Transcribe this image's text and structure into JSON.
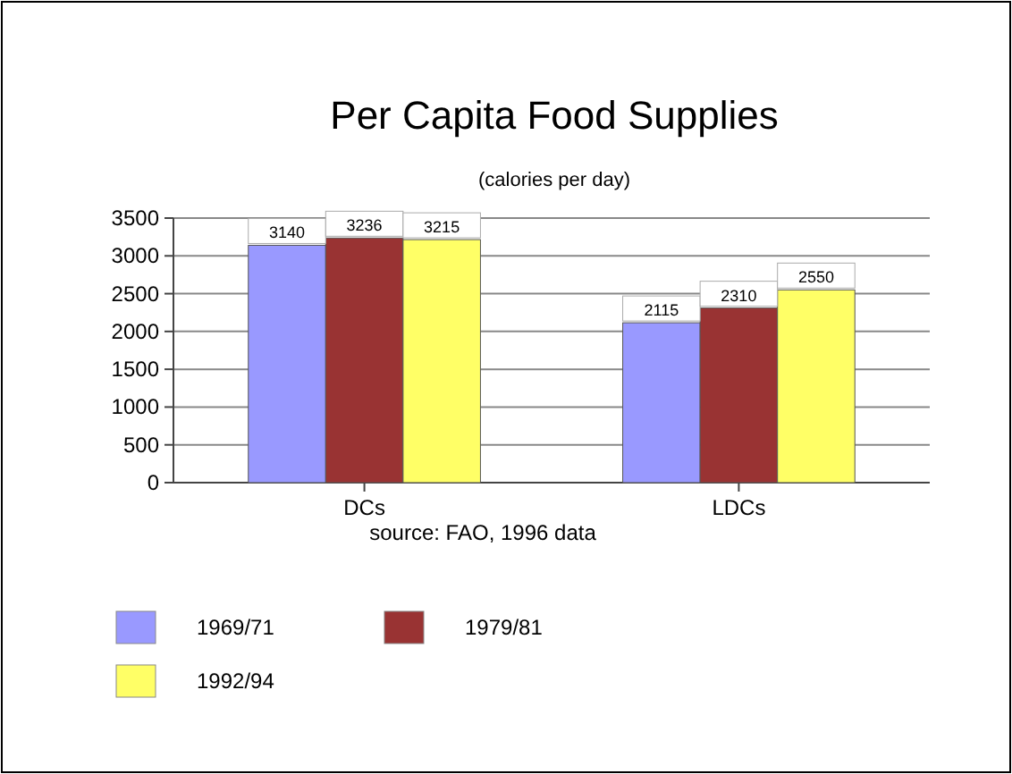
{
  "chart_data": {
    "type": "bar",
    "title": "Per Capita Food Supplies",
    "subtitle": "(calories per day)",
    "categories": [
      "DCs",
      "LDCs"
    ],
    "series": [
      {
        "name": "1969/71",
        "color": "#9999ff",
        "values": [
          3140,
          2115
        ]
      },
      {
        "name": "1979/81",
        "color": "#993333",
        "values": [
          3236,
          2310
        ]
      },
      {
        "name": "1992/94",
        "color": "#ffff66",
        "values": [
          3215,
          2550
        ]
      }
    ],
    "ylim": [
      0,
      3500
    ],
    "yticks": [
      0,
      500,
      1000,
      1500,
      2000,
      2500,
      3000,
      3500
    ],
    "grid": "y",
    "data_labels": true,
    "legend": "bottom",
    "annotations": [
      "source:  FAO, 1996 data"
    ]
  }
}
